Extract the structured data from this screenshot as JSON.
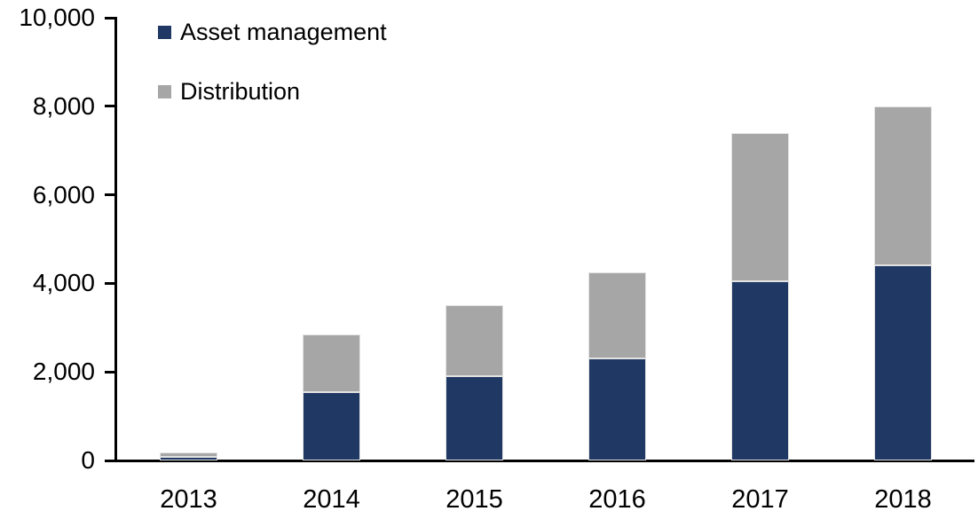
{
  "chart_data": {
    "type": "bar",
    "stacked": true,
    "title": "",
    "xlabel": "",
    "ylabel": "",
    "categories": [
      "2013",
      "2014",
      "2015",
      "2016",
      "2017",
      "2018"
    ],
    "series": [
      {
        "name": "Asset management",
        "color": "#1F3864",
        "values": [
          90,
          1550,
          1900,
          2300,
          4050,
          4400
        ]
      },
      {
        "name": "Distribution",
        "color": "#A6A6A6",
        "values": [
          100,
          1300,
          1600,
          1950,
          3350,
          3600
        ]
      }
    ],
    "totals": [
      190,
      2850,
      3500,
      4250,
      7400,
      8000
    ],
    "ylim": [
      0,
      10000
    ],
    "y_ticks": [
      {
        "value": 0,
        "label": "0"
      },
      {
        "value": 2000,
        "label": "2,000"
      },
      {
        "value": 4000,
        "label": "4,000"
      },
      {
        "value": 6000,
        "label": "6,000"
      },
      {
        "value": 8000,
        "label": "8,000"
      },
      {
        "value": 10000,
        "label": "10,000"
      }
    ],
    "grid": false,
    "legend": {
      "position": "top-left-inside"
    },
    "axis_color": "#000000",
    "background_color": "#FFFFFF"
  }
}
